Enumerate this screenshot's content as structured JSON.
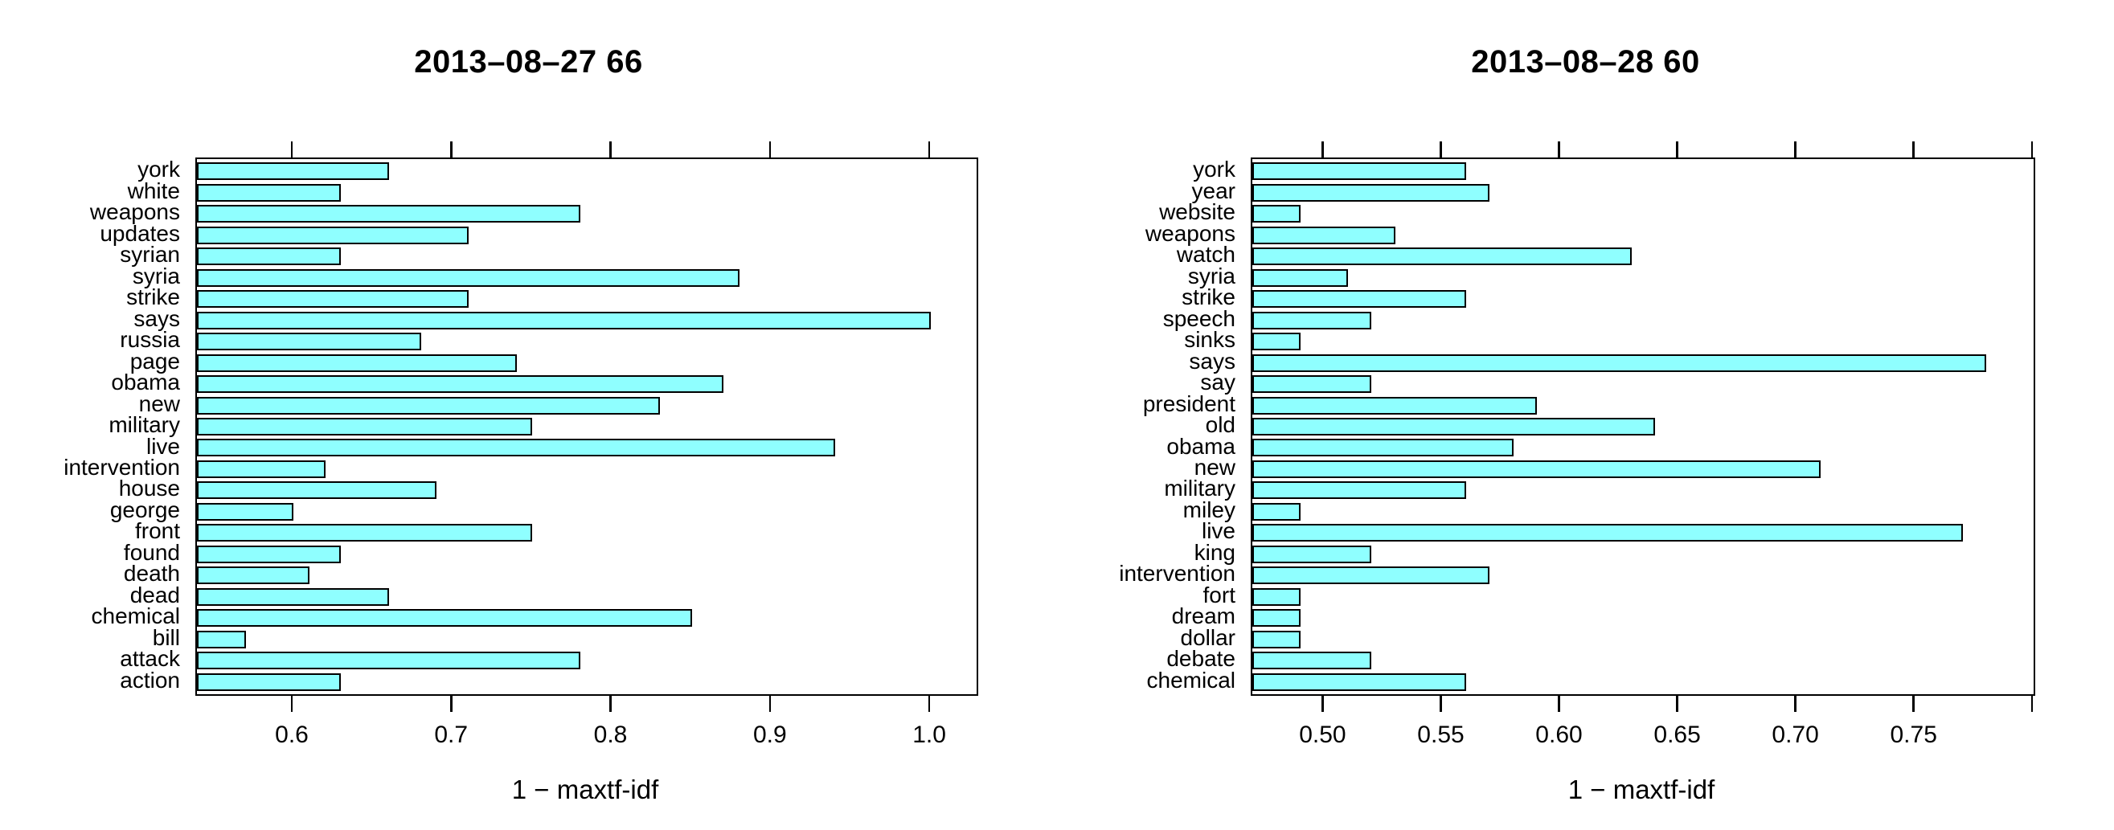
{
  "figure": {
    "background": "#ffffff",
    "bar_fill": "#8FFFFF",
    "bar_border": "#000000",
    "axis_color": "#000000"
  },
  "chart_data": [
    {
      "type": "bar",
      "orientation": "horizontal",
      "title": "2013–08–27 66",
      "xlabel": "1 − maxtf-idf",
      "legend": "none",
      "grid": false,
      "xlim": [
        0.5395,
        1.0287
      ],
      "xticks": [
        0.6,
        0.7,
        0.8,
        0.9,
        1.0
      ],
      "xtick_labels": [
        "0.6",
        "0.7",
        "0.8",
        "0.9",
        "1.0"
      ],
      "categories": [
        "york",
        "white",
        "weapons",
        "updates",
        "syrian",
        "syria",
        "strike",
        "says",
        "russia",
        "page",
        "obama",
        "new",
        "military",
        "live",
        "intervention",
        "house",
        "george",
        "front",
        "found",
        "death",
        "dead",
        "chemical",
        "bill",
        "attack",
        "action"
      ],
      "values": [
        0.66,
        0.63,
        0.78,
        0.71,
        0.63,
        0.88,
        0.71,
        1.0,
        0.68,
        0.74,
        0.87,
        0.83,
        0.75,
        0.94,
        0.62,
        0.69,
        0.6,
        0.75,
        0.63,
        0.61,
        0.66,
        0.85,
        0.57,
        0.78,
        0.63
      ]
    },
    {
      "type": "bar",
      "orientation": "horizontal",
      "title": "2013–08–28 60",
      "xlabel": "1 − maxtf-idf",
      "legend": "none",
      "grid": false,
      "xlim": [
        0.4696,
        0.8001
      ],
      "xticks": [
        0.5,
        0.55,
        0.6,
        0.65,
        0.7,
        0.75,
        0.8
      ],
      "xtick_labels": [
        "0.50",
        "0.55",
        "0.60",
        "0.65",
        "0.70",
        "0.75",
        ""
      ],
      "categories": [
        "york",
        "year",
        "website",
        "weapons",
        "watch",
        "syria",
        "strike",
        "speech",
        "sinks",
        "says",
        "say",
        "president",
        "old",
        "obama",
        "new",
        "military",
        "miley",
        "live",
        "king",
        "intervention",
        "fort",
        "dream",
        "dollar",
        "debate",
        "chemical"
      ],
      "values": [
        0.56,
        0.57,
        0.49,
        0.53,
        0.63,
        0.51,
        0.56,
        0.52,
        0.49,
        0.78,
        0.52,
        0.59,
        0.64,
        0.58,
        0.71,
        0.56,
        0.49,
        0.77,
        0.52,
        0.57,
        0.49,
        0.49,
        0.49,
        0.52,
        0.56
      ]
    }
  ]
}
